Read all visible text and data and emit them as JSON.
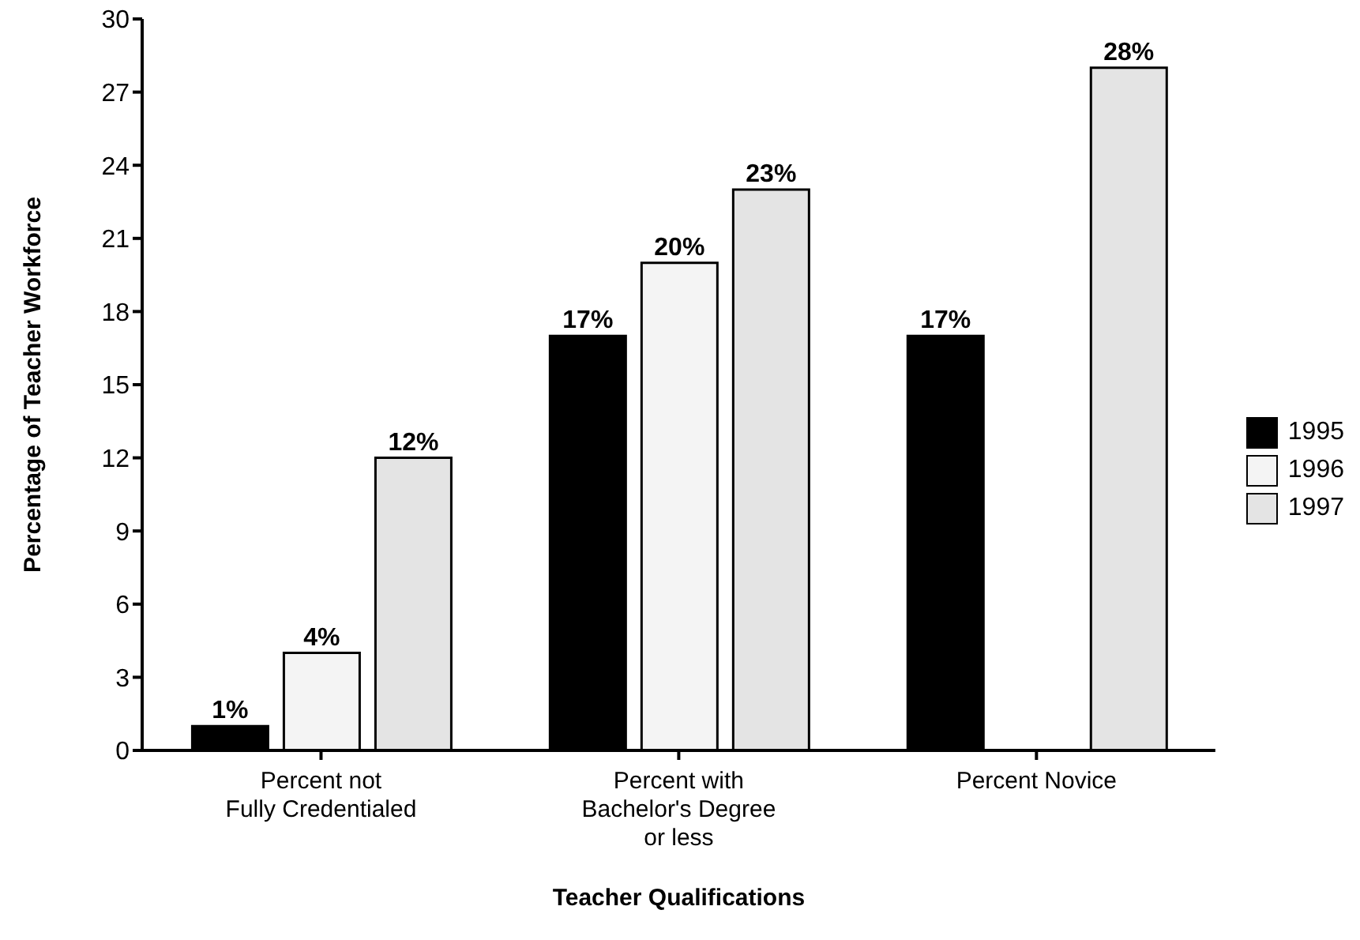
{
  "chart_data": {
    "type": "bar",
    "xlabel": "Teacher Qualifications",
    "ylabel": "Percentage of Teacher Workforce",
    "categories": [
      "Percent not\nFully Credentialed",
      "Percent with\nBachelor's Degree\nor less",
      "Percent Novice"
    ],
    "series": [
      {
        "name": "1995",
        "color": "#000000",
        "values": [
          1,
          17,
          17
        ],
        "value_labels": [
          "1%",
          "17%",
          "17%"
        ]
      },
      {
        "name": "1996",
        "color": "#f4f4f4",
        "values": [
          4,
          20,
          null
        ],
        "value_labels": [
          "4%",
          "20%",
          null
        ]
      },
      {
        "name": "1997",
        "color": "#e4e4e4",
        "values": [
          12,
          23,
          28
        ],
        "value_labels": [
          "12%",
          "23%",
          "28%"
        ]
      }
    ],
    "ylim": [
      0,
      30
    ],
    "yticks": [
      0,
      3,
      6,
      9,
      12,
      15,
      18,
      21,
      24,
      27,
      30
    ],
    "grid": false,
    "legend": "right"
  }
}
